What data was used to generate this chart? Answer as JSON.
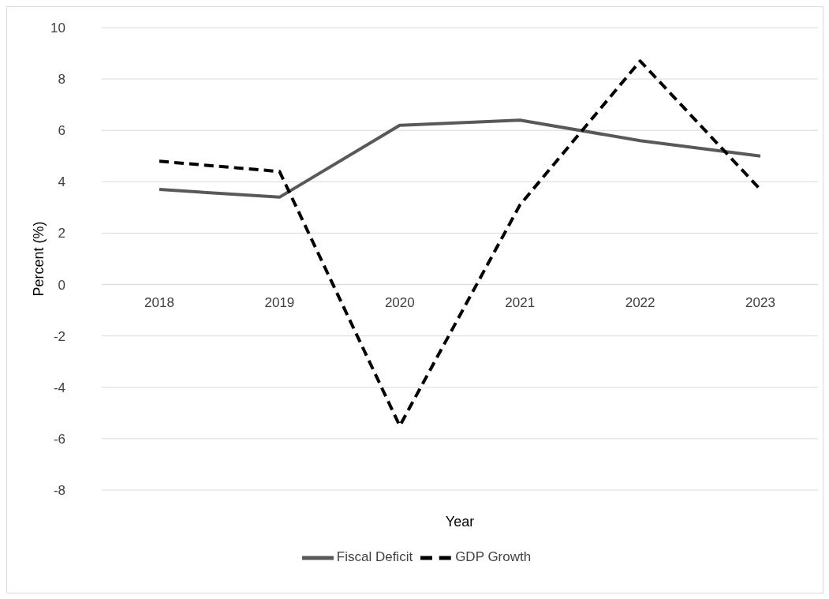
{
  "chart_data": {
    "type": "line",
    "xlabel": "Year",
    "ylabel": "Percent (%)",
    "categories": [
      "2018",
      "2019",
      "2020",
      "2021",
      "2022",
      "2023"
    ],
    "series": [
      {
        "name": "Fiscal Deficit",
        "color": "#595959",
        "line_style": "solid",
        "values": [
          3.7,
          3.4,
          6.2,
          6.4,
          5.6,
          5.0
        ]
      },
      {
        "name": "GDP Growth",
        "color": "#000000",
        "line_style": "dashed",
        "values": [
          4.8,
          4.4,
          -5.5,
          3.1,
          8.7,
          3.7
        ]
      }
    ],
    "ylim": [
      -8,
      10
    ],
    "yticks": [
      -8,
      -6,
      -4,
      -2,
      0,
      2,
      4,
      6,
      8,
      10
    ],
    "grid": "y",
    "legend": "bottom",
    "marker": "none"
  }
}
